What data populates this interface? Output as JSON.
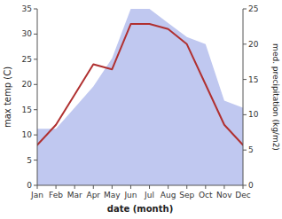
{
  "chart_data": {
    "type": "line",
    "categories": [
      "Jan",
      "Feb",
      "Mar",
      "Apr",
      "May",
      "Jun",
      "Jul",
      "Aug",
      "Sep",
      "Oct",
      "Nov",
      "Dec"
    ],
    "series": [
      {
        "type": "area",
        "color": "#c0c8f0",
        "axis": "y2",
        "values": [
          8,
          8,
          11,
          14,
          18,
          25,
          25,
          23,
          21,
          20,
          12,
          11
        ]
      },
      {
        "type": "line",
        "color": "#b03030",
        "values": [
          8,
          12,
          18,
          24,
          23,
          32,
          32,
          31,
          28,
          20,
          12,
          8
        ]
      }
    ],
    "xlabel": "date (month)",
    "ylabel": "max temp (C)",
    "y2label": "med. precipitation (kg/m2)",
    "ylim": [
      0,
      35
    ],
    "yticks": [
      0,
      5,
      10,
      15,
      20,
      25,
      30,
      35
    ],
    "y2lim": [
      0,
      25
    ],
    "y2ticks": [
      0,
      5,
      10,
      15,
      20,
      25
    ],
    "grid": false
  }
}
